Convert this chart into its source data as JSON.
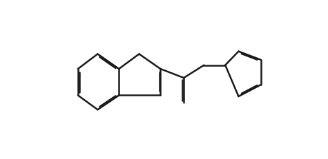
{
  "bg_color": "#ffffff",
  "line_color": "#1a1a1a",
  "line_width": 1.8,
  "font_size": 9,
  "fig_width": 4.75,
  "fig_height": 2.32,
  "dpi": 100
}
